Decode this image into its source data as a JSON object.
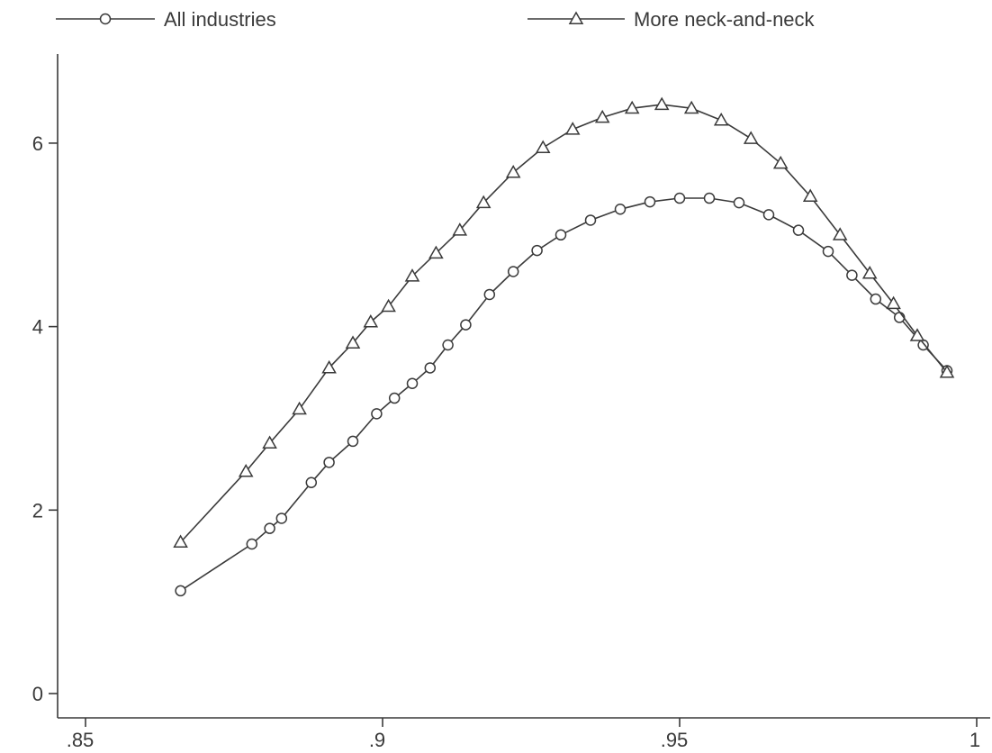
{
  "chart_data": {
    "type": "line",
    "title": "",
    "xlabel": "",
    "ylabel": "",
    "xlim": [
      0.85,
      1.0
    ],
    "ylim": [
      0,
      6.5
    ],
    "xticks": [
      0.85,
      0.9,
      0.95,
      1.0
    ],
    "xtick_labels": [
      ".85",
      ".9",
      ".95",
      "1"
    ],
    "yticks": [
      0,
      2,
      4,
      6
    ],
    "ytick_labels": [
      "0",
      "2",
      "4",
      "6"
    ],
    "legend_position": "top",
    "series": [
      {
        "name": "All industries",
        "marker": "circle",
        "x": [
          0.866,
          0.878,
          0.881,
          0.883,
          0.888,
          0.891,
          0.895,
          0.899,
          0.902,
          0.905,
          0.908,
          0.911,
          0.914,
          0.918,
          0.922,
          0.926,
          0.93,
          0.935,
          0.94,
          0.945,
          0.95,
          0.955,
          0.96,
          0.965,
          0.97,
          0.975,
          0.979,
          0.983,
          0.987,
          0.991,
          0.995
        ],
        "y": [
          1.12,
          1.63,
          1.8,
          1.91,
          2.3,
          2.52,
          2.75,
          3.05,
          3.22,
          3.38,
          3.55,
          3.8,
          4.02,
          4.35,
          4.6,
          4.83,
          5.0,
          5.16,
          5.28,
          5.36,
          5.4,
          5.4,
          5.35,
          5.22,
          5.05,
          4.82,
          4.56,
          4.3,
          4.1,
          3.8,
          3.52
        ]
      },
      {
        "name": "More neck-and-neck",
        "marker": "triangle",
        "x": [
          0.866,
          0.877,
          0.881,
          0.886,
          0.891,
          0.895,
          0.898,
          0.901,
          0.905,
          0.909,
          0.913,
          0.917,
          0.922,
          0.927,
          0.932,
          0.937,
          0.942,
          0.947,
          0.952,
          0.957,
          0.962,
          0.967,
          0.972,
          0.977,
          0.982,
          0.986,
          0.99,
          0.995
        ],
        "y": [
          1.65,
          2.42,
          2.73,
          3.1,
          3.55,
          3.82,
          4.05,
          4.22,
          4.55,
          4.8,
          5.05,
          5.35,
          5.68,
          5.95,
          6.15,
          6.28,
          6.38,
          6.42,
          6.38,
          6.25,
          6.05,
          5.78,
          5.42,
          5.0,
          4.58,
          4.25,
          3.9,
          3.5
        ]
      }
    ]
  }
}
